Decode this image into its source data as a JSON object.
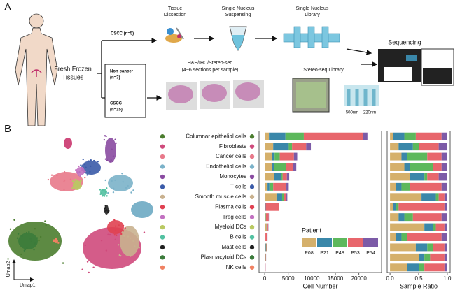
{
  "panel_a": {
    "label": "A",
    "tissue_lines": [
      "Fresh Frozen",
      "Tissues"
    ],
    "branch_top": "CSCC (n=5)",
    "box_lines": [
      "Non-cancer",
      "(n=3)",
      "CSCC",
      "(n=15)"
    ],
    "step_dissection": [
      "Tissue",
      "Dissection"
    ],
    "step_suspension": [
      "Single Nucleus",
      "Suspensing"
    ],
    "step_library": [
      "Single Nucleus",
      "Library"
    ],
    "sequencing": "Sequencing",
    "stain_lines": [
      "H&E/IHC/Stereo-seq",
      "(4~6 sections per sample)"
    ],
    "stereo_library": "Stereo-seq Library",
    "sizes": [
      "500nm",
      "220nm"
    ]
  },
  "panel_b": {
    "label": "B",
    "umap_x": "Umap1",
    "umap_y": "Umap2"
  },
  "chart_data": [
    {
      "type": "bar",
      "orientation": "horizontal",
      "stacked": true,
      "categories": [
        "Columnar epithelial cells",
        "Fibroblasts",
        "Cancer cells",
        "Endothelial cells",
        "Monocytes",
        "T cells",
        "Smooth muscle cells",
        "Plasma cells",
        "Treg cells",
        "Myeloid DCs",
        "B cells",
        "Mast cells",
        "Plasmacytoid DCs",
        "NK cells"
      ],
      "category_colors": [
        "#4b7d2f",
        "#cf4a7c",
        "#e8798a",
        "#7bb2c9",
        "#8a4ba1",
        "#3b5ba9",
        "#c9b18f",
        "#e04151",
        "#c271c1",
        "#b9c962",
        "#52c1a1",
        "#202020",
        "#3b7b3b",
        "#f08162"
      ],
      "series": [
        {
          "name": "P08",
          "color": "#d5b06b",
          "values": [
            900,
            1800,
            1500,
            1500,
            2000,
            600,
            2500,
            100,
            100,
            400,
            50,
            200,
            100,
            60
          ]
        },
        {
          "name": "P21",
          "color": "#3a87a9",
          "values": [
            3500,
            3300,
            600,
            500,
            1500,
            400,
            1200,
            100,
            50,
            100,
            50,
            100,
            50,
            40
          ]
        },
        {
          "name": "P48",
          "color": "#5db85c",
          "values": [
            3900,
            700,
            1100,
            2500,
            300,
            800,
            300,
            0,
            100,
            100,
            50,
            50,
            50,
            20
          ]
        },
        {
          "name": "P53",
          "color": "#e8666c",
          "values": [
            12500,
            3000,
            3000,
            1500,
            900,
            2800,
            600,
            2800,
            600,
            150,
            400,
            100,
            80,
            60
          ]
        },
        {
          "name": "P54",
          "color": "#7c5ba7",
          "values": [
            1000,
            1000,
            700,
            700,
            500,
            500,
            200,
            0,
            50,
            50,
            50,
            50,
            20,
            20
          ]
        }
      ],
      "xlim": [
        -1200,
        24800
      ],
      "xticks": [
        0,
        5000,
        10000,
        15000,
        20000
      ],
      "xlabel": "Cell Number",
      "legend_title": "Patient"
    },
    {
      "type": "bar",
      "orientation": "horizontal",
      "stacked": true,
      "series": [
        {
          "color": "#d5b06b",
          "values": [
            0.05,
            0.15,
            0.2,
            0.25,
            0.35,
            0.1,
            0.55,
            0.05,
            0.15,
            0.6,
            0.1,
            0.45,
            0.5,
            0.3
          ]
        },
        {
          "color": "#3a87a9",
          "values": [
            0.2,
            0.25,
            0.1,
            0.1,
            0.25,
            0.1,
            0.25,
            0.05,
            0.1,
            0.15,
            0.1,
            0.2,
            0.1,
            0.2
          ]
        },
        {
          "color": "#5db85c",
          "values": [
            0.2,
            0.1,
            0.35,
            0.4,
            0.05,
            0.15,
            0.05,
            0.05,
            0.15,
            0.05,
            0.1,
            0.1,
            0.1,
            0.1
          ]
        },
        {
          "color": "#e8666c",
          "values": [
            0.45,
            0.35,
            0.25,
            0.15,
            0.2,
            0.55,
            0.1,
            0.8,
            0.5,
            0.15,
            0.6,
            0.2,
            0.25,
            0.35
          ]
        },
        {
          "color": "#7c5ba7",
          "values": [
            0.1,
            0.15,
            0.1,
            0.1,
            0.15,
            0.1,
            0.05,
            0.05,
            0.1,
            0.05,
            0.1,
            0.05,
            0.05,
            0.05
          ]
        }
      ],
      "xlim": [
        -0.05,
        1.05
      ],
      "xticks": [
        {
          "value": 0,
          "label": "0.0"
        },
        {
          "value": 0.5,
          "label": "0.5"
        },
        {
          "value": 1,
          "label": "1.0"
        }
      ],
      "xlabel": "Sample Ratio"
    }
  ]
}
